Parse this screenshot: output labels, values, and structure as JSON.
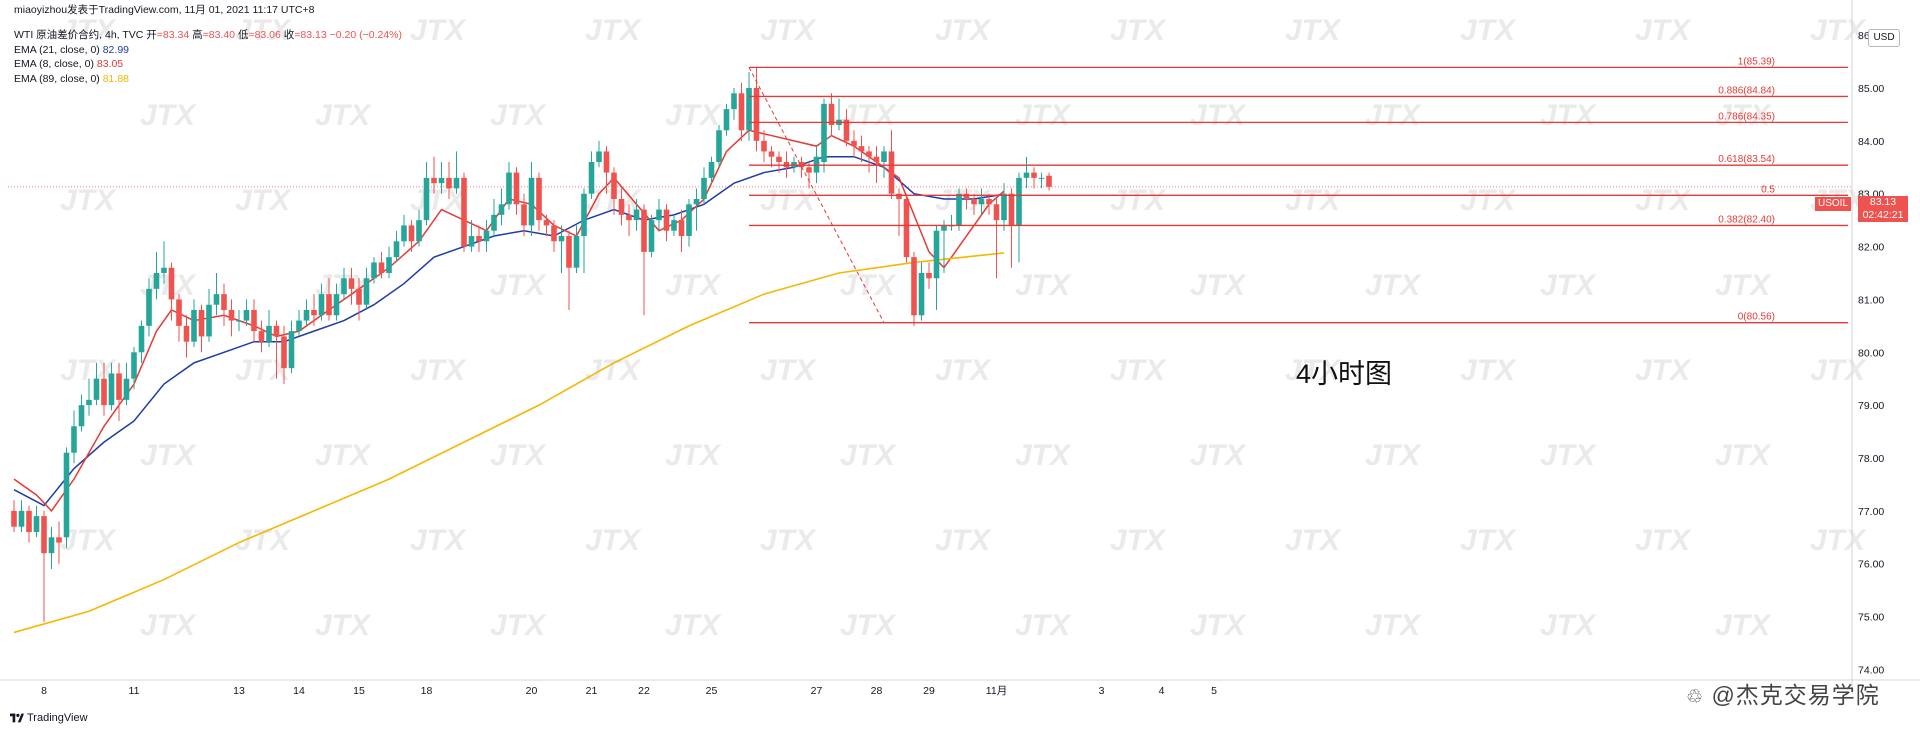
{
  "header": {
    "author_line": "miaoyizhou发表于TradingView.com,  11月 01, 2021 11:17 UTC+8"
  },
  "legend": {
    "symbol_line": "WTI 原油差价合约, 4h, TVC",
    "ohlc": {
      "open_label": "开",
      "open": "=83.34",
      "high_label": "高",
      "high": "=83.40",
      "low_label": "低",
      "low": "=83.06",
      "close_label": "收",
      "close": "=83.13",
      "change": "−0.20 (−0.24%)"
    },
    "indicators": [
      {
        "label": "EMA (21, close, 0)",
        "value": "82.99",
        "color": "#1e3ca8"
      },
      {
        "label": "EMA (8, close, 0)",
        "value": "83.05",
        "color": "#e53935"
      },
      {
        "label": "EMA (89, close, 0)",
        "value": "81.88",
        "color": "#f5b700"
      }
    ]
  },
  "price_axis": {
    "currency": "USD",
    "last_price": "83.13",
    "countdown": "02:42:21",
    "symbol_tag": "USOIL"
  },
  "caption": "4小时图",
  "footer": {
    "tradingview_label": "TradingView",
    "brand": "@杰克交易学院"
  },
  "watermark_text": "JTX",
  "colors": {
    "up": "#26a69a",
    "down": "#ef5350",
    "ema8": "#e53935",
    "ema21": "#1e3ca8",
    "ema89": "#f5b700",
    "fib": "#e53935"
  },
  "chart_data": {
    "type": "candlestick",
    "timeframe": "4h",
    "ylim": [
      73.8,
      86.4
    ],
    "y_ticks": [
      74,
      75,
      76,
      77,
      78,
      79,
      80,
      81,
      82,
      83,
      84,
      85,
      86
    ],
    "x_ticks": [
      {
        "label": "8",
        "i": 4
      },
      {
        "label": "11",
        "i": 16
      },
      {
        "label": "13",
        "i": 30
      },
      {
        "label": "14",
        "i": 38
      },
      {
        "label": "15",
        "i": 46
      },
      {
        "label": "18",
        "i": 55
      },
      {
        "label": "20",
        "i": 69
      },
      {
        "label": "21",
        "i": 77
      },
      {
        "label": "22",
        "i": 84
      },
      {
        "label": "25",
        "i": 93
      },
      {
        "label": "27",
        "i": 107
      },
      {
        "label": "28",
        "i": 115
      },
      {
        "label": "29",
        "i": 122
      },
      {
        "label": "11月",
        "i": 131
      },
      {
        "label": "3",
        "i": 145
      },
      {
        "label": "4",
        "i": 153
      },
      {
        "label": "5",
        "i": 160
      }
    ],
    "candles": [
      [
        77.0,
        76.7,
        77.2,
        76.6
      ],
      [
        76.7,
        77.0,
        77.2,
        76.6
      ],
      [
        77.0,
        76.6,
        77.1,
        76.4
      ],
      [
        76.6,
        76.9,
        77.1,
        76.5
      ],
      [
        76.9,
        76.2,
        77.0,
        74.9
      ],
      [
        76.2,
        76.5,
        76.7,
        75.9
      ],
      [
        76.5,
        76.4,
        76.8,
        76.0
      ],
      [
        76.5,
        78.1,
        78.2,
        76.3
      ],
      [
        78.1,
        78.6,
        78.9,
        77.9
      ],
      [
        78.6,
        79.0,
        79.2,
        78.5
      ],
      [
        79.0,
        79.1,
        79.5,
        78.8
      ],
      [
        79.1,
        79.5,
        79.8,
        79.0
      ],
      [
        79.5,
        79.0,
        79.8,
        78.8
      ],
      [
        79.0,
        79.6,
        79.8,
        78.9
      ],
      [
        79.6,
        79.1,
        79.8,
        78.7
      ],
      [
        79.1,
        79.5,
        79.8,
        79.0
      ],
      [
        79.5,
        80.0,
        80.1,
        79.3
      ],
      [
        80.0,
        80.5,
        80.6,
        79.8
      ],
      [
        80.5,
        81.2,
        81.4,
        80.3
      ],
      [
        81.2,
        81.5,
        81.9,
        81.0
      ],
      [
        81.5,
        81.6,
        82.1,
        81.3
      ],
      [
        81.6,
        81.0,
        81.7,
        80.6
      ],
      [
        81.0,
        80.5,
        81.1,
        80.2
      ],
      [
        80.5,
        80.2,
        80.7,
        79.9
      ],
      [
        80.2,
        80.8,
        81.0,
        80.1
      ],
      [
        80.8,
        80.3,
        80.9,
        80.0
      ],
      [
        80.3,
        80.9,
        81.2,
        80.2
      ],
      [
        80.9,
        81.1,
        81.5,
        80.7
      ],
      [
        81.1,
        80.8,
        81.3,
        80.5
      ],
      [
        80.8,
        80.6,
        81.0,
        80.3
      ],
      [
        80.6,
        80.6,
        80.8,
        80.4
      ],
      [
        80.6,
        80.8,
        81.0,
        80.5
      ],
      [
        80.8,
        80.4,
        81.0,
        80.2
      ],
      [
        80.4,
        80.2,
        80.6,
        80.0
      ],
      [
        80.2,
        80.5,
        80.8,
        80.1
      ],
      [
        80.5,
        80.3,
        80.6,
        79.5
      ],
      [
        80.3,
        79.7,
        80.5,
        79.4
      ],
      [
        79.7,
        80.4,
        80.6,
        79.6
      ],
      [
        80.4,
        80.6,
        80.8,
        80.3
      ],
      [
        80.6,
        80.8,
        81.0,
        80.5
      ],
      [
        80.8,
        80.7,
        81.1,
        80.5
      ],
      [
        80.7,
        81.1,
        81.3,
        80.6
      ],
      [
        81.1,
        80.7,
        81.4,
        80.6
      ],
      [
        80.7,
        81.1,
        81.3,
        80.6
      ],
      [
        81.1,
        81.4,
        81.6,
        81.0
      ],
      [
        81.4,
        81.2,
        81.6,
        80.9
      ],
      [
        81.2,
        80.9,
        81.4,
        80.6
      ],
      [
        80.9,
        81.4,
        81.6,
        80.8
      ],
      [
        81.4,
        81.7,
        81.8,
        81.3
      ],
      [
        81.7,
        81.5,
        81.9,
        81.4
      ],
      [
        81.5,
        81.8,
        82.0,
        81.4
      ],
      [
        81.8,
        82.1,
        82.3,
        81.7
      ],
      [
        82.1,
        82.4,
        82.6,
        82.0
      ],
      [
        82.4,
        82.1,
        82.5,
        81.9
      ],
      [
        82.1,
        82.5,
        82.7,
        82.0
      ],
      [
        82.5,
        83.3,
        83.6,
        82.4
      ],
      [
        83.3,
        83.2,
        83.7,
        83.0
      ],
      [
        83.2,
        83.3,
        83.6,
        83.0
      ],
      [
        83.3,
        83.1,
        83.6,
        82.9
      ],
      [
        83.1,
        83.3,
        83.8,
        83.0
      ],
      [
        83.3,
        82.0,
        83.4,
        81.9
      ],
      [
        82.0,
        82.2,
        82.5,
        81.9
      ],
      [
        82.2,
        82.1,
        82.4,
        81.9
      ],
      [
        82.1,
        82.3,
        82.5,
        81.9
      ],
      [
        82.3,
        82.6,
        82.9,
        82.2
      ],
      [
        82.6,
        82.8,
        83.1,
        82.4
      ],
      [
        82.8,
        83.4,
        83.6,
        82.7
      ],
      [
        83.4,
        82.8,
        83.5,
        82.6
      ],
      [
        82.8,
        82.4,
        83.0,
        82.2
      ],
      [
        82.4,
        83.3,
        83.6,
        82.2
      ],
      [
        83.3,
        82.5,
        83.4,
        82.3
      ],
      [
        82.5,
        82.4,
        82.6,
        82.2
      ],
      [
        82.4,
        82.1,
        82.5,
        81.9
      ],
      [
        82.1,
        82.2,
        82.4,
        81.5
      ],
      [
        82.2,
        81.6,
        82.3,
        80.8
      ],
      [
        81.6,
        82.2,
        82.4,
        81.5
      ],
      [
        82.2,
        83.0,
        83.1,
        81.5
      ],
      [
        83.0,
        83.6,
        83.8,
        82.9
      ],
      [
        83.6,
        83.8,
        84.0,
        83.5
      ],
      [
        83.8,
        83.4,
        83.9,
        83.0
      ],
      [
        83.4,
        82.9,
        83.5,
        82.6
      ],
      [
        82.9,
        82.6,
        83.1,
        82.4
      ],
      [
        82.6,
        82.5,
        82.8,
        82.2
      ],
      [
        82.5,
        82.7,
        82.9,
        82.3
      ],
      [
        82.7,
        81.9,
        82.8,
        80.7
      ],
      [
        81.9,
        82.5,
        82.6,
        81.8
      ],
      [
        82.5,
        82.7,
        82.9,
        82.3
      ],
      [
        82.7,
        82.3,
        82.8,
        82.1
      ],
      [
        82.3,
        82.5,
        82.6,
        82.2
      ],
      [
        82.5,
        82.2,
        82.7,
        81.9
      ],
      [
        82.2,
        82.8,
        82.9,
        82.0
      ],
      [
        82.8,
        82.9,
        83.1,
        82.3
      ],
      [
        82.9,
        83.3,
        83.5,
        82.8
      ],
      [
        83.3,
        83.6,
        83.7,
        83.2
      ],
      [
        83.6,
        84.2,
        84.3,
        83.5
      ],
      [
        84.2,
        84.6,
        84.7,
        84.1
      ],
      [
        84.6,
        84.9,
        85.0,
        84.4
      ],
      [
        84.9,
        84.2,
        85.1,
        84.0
      ],
      [
        84.2,
        85.0,
        85.3,
        84.0
      ],
      [
        85.0,
        84.0,
        85.4,
        83.8
      ],
      [
        84.0,
        83.8,
        84.2,
        83.6
      ],
      [
        83.8,
        83.7,
        83.9,
        83.5
      ],
      [
        83.7,
        83.6,
        83.8,
        83.4
      ],
      [
        83.6,
        83.5,
        83.8,
        83.3
      ],
      [
        83.5,
        83.6,
        83.7,
        83.4
      ],
      [
        83.6,
        83.5,
        83.7,
        83.3
      ],
      [
        83.5,
        83.4,
        83.6,
        83.1
      ],
      [
        83.4,
        83.7,
        83.9,
        83.2
      ],
      [
        83.6,
        84.7,
        84.8,
        83.4
      ],
      [
        84.7,
        84.3,
        84.9,
        84.1
      ],
      [
        84.3,
        84.4,
        84.8,
        84.2
      ],
      [
        84.4,
        84.0,
        84.6,
        83.9
      ],
      [
        84.0,
        83.9,
        84.2,
        83.7
      ],
      [
        83.9,
        83.8,
        84.1,
        83.6
      ],
      [
        83.8,
        83.7,
        83.9,
        83.4
      ],
      [
        83.7,
        83.6,
        83.9,
        83.2
      ],
      [
        83.6,
        83.8,
        83.9,
        83.3
      ],
      [
        83.8,
        83.0,
        84.2,
        82.9
      ],
      [
        83.0,
        82.9,
        83.1,
        82.2
      ],
      [
        82.9,
        81.8,
        83.0,
        81.7
      ],
      [
        81.8,
        80.7,
        81.9,
        80.5
      ],
      [
        80.7,
        81.5,
        81.7,
        80.6
      ],
      [
        81.5,
        81.4,
        81.7,
        81.2
      ],
      [
        81.4,
        82.3,
        82.4,
        80.8
      ],
      [
        82.3,
        82.4,
        82.5,
        81.5
      ],
      [
        82.4,
        82.4,
        82.6,
        82.3
      ],
      [
        82.4,
        83.0,
        83.1,
        82.3
      ],
      [
        83.0,
        82.9,
        83.1,
        82.7
      ],
      [
        82.9,
        82.8,
        83.0,
        82.6
      ],
      [
        82.8,
        82.9,
        83.1,
        82.6
      ],
      [
        82.9,
        82.8,
        83.0,
        82.6
      ],
      [
        82.8,
        82.5,
        82.9,
        81.4
      ],
      [
        82.5,
        83.0,
        83.2,
        82.3
      ],
      [
        83.0,
        82.4,
        83.1,
        81.6
      ],
      [
        82.4,
        83.3,
        83.4,
        81.7
      ],
      [
        83.3,
        83.4,
        83.7,
        83.1
      ],
      [
        83.4,
        83.3,
        83.5,
        83.1
      ],
      [
        83.3,
        83.3,
        83.4,
        83.1
      ],
      [
        83.34,
        83.13,
        83.4,
        83.06
      ]
    ],
    "ema": [
      {
        "name": "EMA (21, close, 0)",
        "color": "#1e3ca8",
        "points": [
          [
            0,
            77.4
          ],
          [
            4,
            77.1
          ],
          [
            8,
            77.8
          ],
          [
            12,
            78.3
          ],
          [
            16,
            78.7
          ],
          [
            20,
            79.4
          ],
          [
            24,
            79.8
          ],
          [
            28,
            80.0
          ],
          [
            32,
            80.2
          ],
          [
            36,
            80.2
          ],
          [
            40,
            80.4
          ],
          [
            44,
            80.6
          ],
          [
            48,
            80.9
          ],
          [
            52,
            81.3
          ],
          [
            56,
            81.8
          ],
          [
            60,
            82.0
          ],
          [
            64,
            82.2
          ],
          [
            68,
            82.3
          ],
          [
            72,
            82.2
          ],
          [
            76,
            82.5
          ],
          [
            80,
            82.7
          ],
          [
            84,
            82.5
          ],
          [
            88,
            82.6
          ],
          [
            92,
            82.8
          ],
          [
            96,
            83.2
          ],
          [
            100,
            83.4
          ],
          [
            104,
            83.5
          ],
          [
            108,
            83.7
          ],
          [
            112,
            83.7
          ],
          [
            116,
            83.5
          ],
          [
            120,
            83.0
          ],
          [
            124,
            82.9
          ],
          [
            128,
            82.9
          ],
          [
            132,
            82.99
          ]
        ]
      },
      {
        "name": "EMA (8, close, 0)",
        "color": "#e53935",
        "points": [
          [
            0,
            77.6
          ],
          [
            3,
            77.3
          ],
          [
            5,
            77.0
          ],
          [
            8,
            77.6
          ],
          [
            12,
            78.6
          ],
          [
            16,
            79.4
          ],
          [
            19,
            80.4
          ],
          [
            21,
            80.8
          ],
          [
            24,
            80.6
          ],
          [
            28,
            80.7
          ],
          [
            32,
            80.5
          ],
          [
            35,
            80.3
          ],
          [
            38,
            80.4
          ],
          [
            42,
            80.8
          ],
          [
            46,
            81.2
          ],
          [
            50,
            81.6
          ],
          [
            54,
            82.1
          ],
          [
            57,
            82.7
          ],
          [
            60,
            82.5
          ],
          [
            63,
            82.3
          ],
          [
            66,
            82.9
          ],
          [
            69,
            82.8
          ],
          [
            72,
            82.4
          ],
          [
            75,
            82.2
          ],
          [
            78,
            83.0
          ],
          [
            80,
            83.3
          ],
          [
            83,
            82.8
          ],
          [
            86,
            82.3
          ],
          [
            89,
            82.5
          ],
          [
            92,
            82.9
          ],
          [
            95,
            83.8
          ],
          [
            98,
            84.2
          ],
          [
            101,
            84.1
          ],
          [
            104,
            84.0
          ],
          [
            107,
            83.9
          ],
          [
            109,
            84.1
          ],
          [
            112,
            83.9
          ],
          [
            115,
            83.6
          ],
          [
            118,
            83.3
          ],
          [
            120,
            82.6
          ],
          [
            122,
            81.9
          ],
          [
            124,
            81.6
          ],
          [
            126,
            82.0
          ],
          [
            128,
            82.4
          ],
          [
            130,
            82.8
          ],
          [
            132,
            83.05
          ]
        ]
      },
      {
        "name": "EMA (89, close, 0)",
        "color": "#f5b700",
        "points": [
          [
            0,
            74.7
          ],
          [
            10,
            75.1
          ],
          [
            20,
            75.7
          ],
          [
            30,
            76.4
          ],
          [
            40,
            77.0
          ],
          [
            50,
            77.6
          ],
          [
            60,
            78.3
          ],
          [
            70,
            79.0
          ],
          [
            80,
            79.8
          ],
          [
            90,
            80.5
          ],
          [
            100,
            81.1
          ],
          [
            110,
            81.5
          ],
          [
            120,
            81.7
          ],
          [
            132,
            81.88
          ]
        ]
      }
    ],
    "fib_levels": [
      {
        "label": "1(85.39)",
        "value": 85.39
      },
      {
        "label": "0.886(84.84)",
        "value": 84.84
      },
      {
        "label": "0.786(84.35)",
        "value": 84.35
      },
      {
        "label": "0.618(83.54)",
        "value": 83.54
      },
      {
        "label": "0.5",
        "value": 82.97
      },
      {
        "label": "0.382(82.40)",
        "value": 82.4
      },
      {
        "label": "0(80.56)",
        "value": 80.56
      }
    ],
    "fib_start_i": 98,
    "fib_end_i": 116,
    "last_price": 83.13
  }
}
